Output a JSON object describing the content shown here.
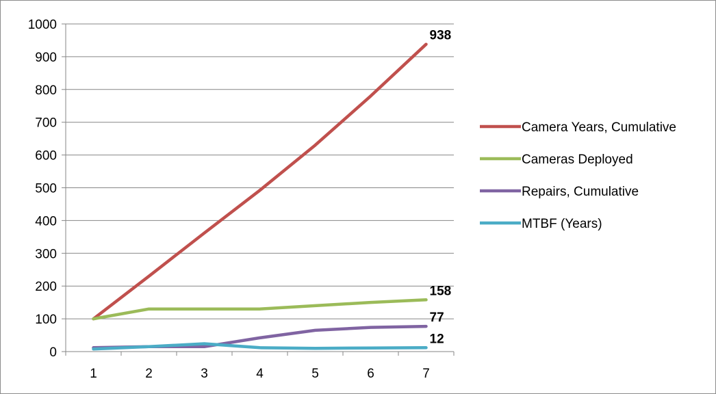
{
  "chart_data": {
    "type": "line",
    "title": "",
    "xlabel": "",
    "ylabel": "",
    "x": [
      1,
      2,
      3,
      4,
      5,
      6,
      7
    ],
    "ylim": [
      0,
      1000
    ],
    "yticks": [
      0,
      100,
      200,
      300,
      400,
      500,
      600,
      700,
      800,
      900,
      1000
    ],
    "grid": "horizontal",
    "legend_position": "right",
    "series": [
      {
        "name": "Camera Years, Cumulative",
        "color": "#c0504d",
        "values": [
          100,
          230,
          362,
          492,
          630,
          780,
          938
        ],
        "end_label": "938"
      },
      {
        "name": "Cameras Deployed",
        "color": "#9bbb59",
        "values": [
          100,
          130,
          130,
          130,
          140,
          150,
          158
        ],
        "end_label": "158"
      },
      {
        "name": "Repairs, Cumulative",
        "color": "#8064a2",
        "values": [
          12,
          15,
          15,
          42,
          65,
          74,
          77
        ],
        "end_label": "77"
      },
      {
        "name": "MTBF (Years)",
        "color": "#4bacc6",
        "values": [
          8,
          15,
          24,
          12,
          10,
          11,
          12
        ],
        "end_label": "12"
      }
    ]
  }
}
